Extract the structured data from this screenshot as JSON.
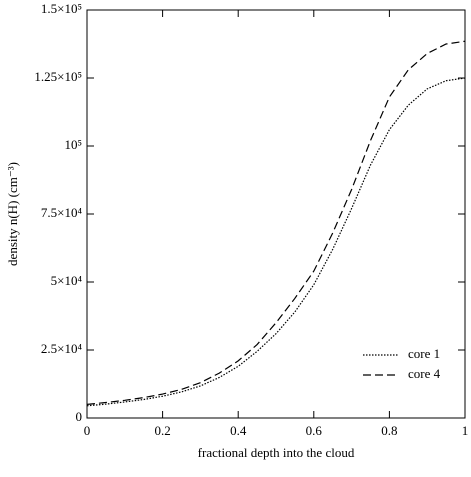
{
  "chart_data": {
    "type": "line",
    "x_label": "fractional depth into the cloud",
    "y_label": "density n(H) (cm⁻³)",
    "x": [
      0,
      0.05,
      0.1,
      0.15,
      0.2,
      0.25,
      0.3,
      0.35,
      0.4,
      0.45,
      0.5,
      0.55,
      0.6,
      0.65,
      0.7,
      0.75,
      0.8,
      0.85,
      0.9,
      0.95,
      1
    ],
    "series": [
      {
        "name": "core 1",
        "color": "#000000",
        "dash": "dotted",
        "values": [
          4500,
          5100,
          5900,
          6800,
          8000,
          9600,
          11800,
          14900,
          19000,
          24500,
          31000,
          39000,
          49000,
          62000,
          77000,
          93000,
          106000,
          115000,
          121000,
          124000,
          125000
        ]
      },
      {
        "name": "core 4",
        "color": "#000000",
        "dash": "dashed",
        "values": [
          5000,
          5700,
          6500,
          7500,
          8800,
          10500,
          13000,
          16500,
          21000,
          27000,
          35000,
          44000,
          54000,
          68000,
          84000,
          102000,
          118000,
          128000,
          134000,
          137500,
          138500
        ]
      }
    ],
    "xlim": [
      0,
      1
    ],
    "xticks": [
      0,
      0.2,
      0.4,
      0.6,
      0.8,
      1
    ],
    "ylim": [
      0,
      150000
    ],
    "yticks": [
      0,
      {
        "value": 25000,
        "label": "2.5×10⁴"
      },
      {
        "value": 50000,
        "label": "5×10⁴"
      },
      {
        "value": 75000,
        "label": "7.5×10⁴"
      },
      {
        "value": 100000,
        "label": "10⁵"
      },
      {
        "value": 125000,
        "label": "1.25×10⁵"
      },
      {
        "value": 150000,
        "label": "1.5×10⁵"
      }
    ],
    "legend": "lower right"
  }
}
